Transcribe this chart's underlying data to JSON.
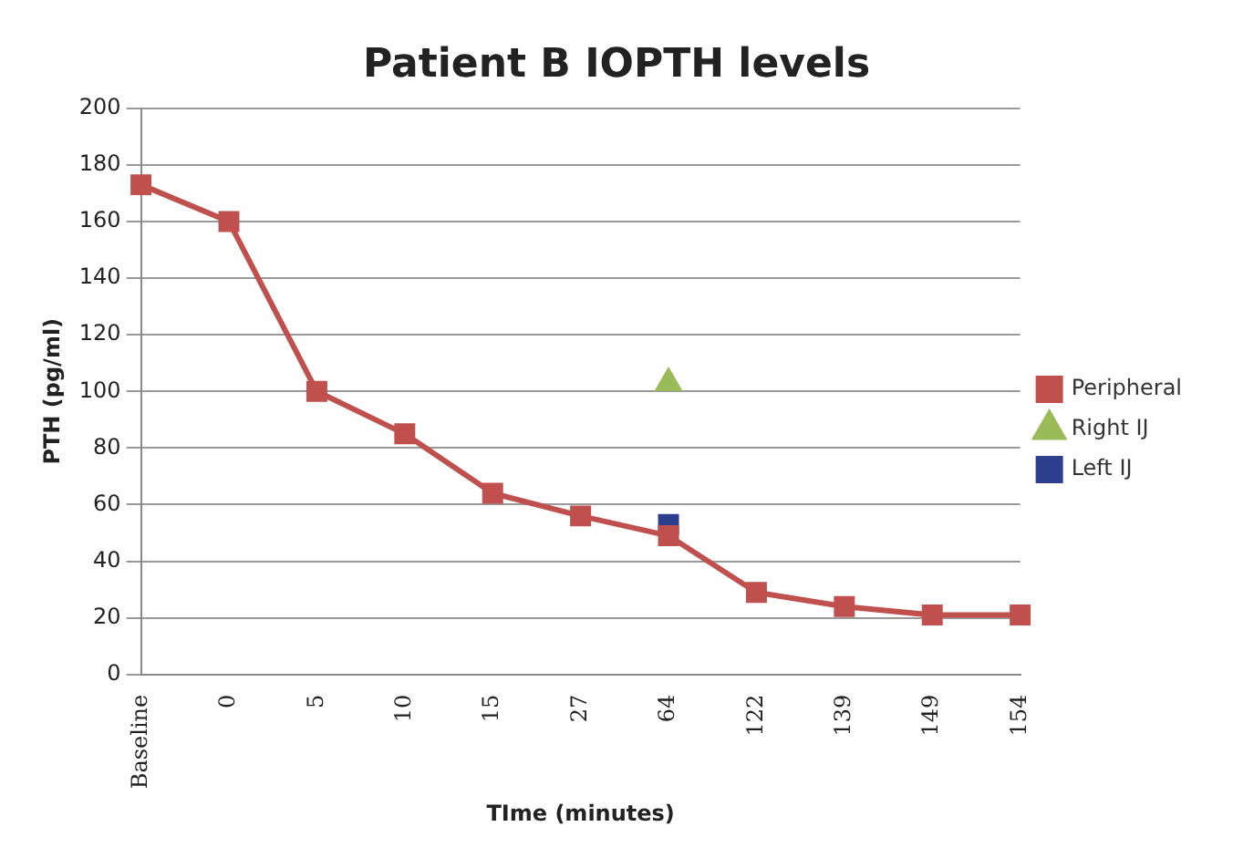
{
  "chart_data": {
    "type": "line",
    "title": "Patient B IOPTH levels",
    "xlabel": "TIme (minutes)",
    "ylabel": "PTH (pg/ml)",
    "categories": [
      "Baseline",
      "0",
      "5",
      "10",
      "15",
      "27",
      "64",
      "122",
      "139",
      "149",
      "154"
    ],
    "series": [
      {
        "name": "Peripheral",
        "color": "#c0504d",
        "marker": "square",
        "values": [
          173,
          160,
          100,
          85,
          64,
          56,
          49,
          29,
          24,
          21,
          21
        ]
      },
      {
        "name": "Right IJ",
        "color": "#9bbb59",
        "marker": "triangle",
        "values": [
          null,
          null,
          null,
          null,
          null,
          null,
          103,
          null,
          null,
          null,
          null
        ]
      },
      {
        "name": "Left IJ",
        "color": "#2c3e8c",
        "marker": "square",
        "values": [
          null,
          null,
          null,
          null,
          null,
          null,
          53,
          null,
          null,
          null,
          null
        ]
      }
    ],
    "ylim": [
      0,
      200
    ],
    "yticks": [
      0,
      20,
      40,
      60,
      80,
      100,
      120,
      140,
      160,
      180,
      200
    ],
    "grid": "y",
    "legend": "right"
  }
}
